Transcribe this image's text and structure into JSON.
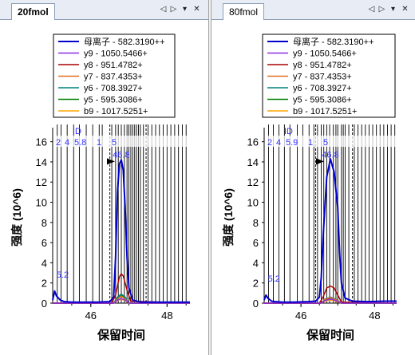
{
  "panes": [
    {
      "tab_label": "20fmol",
      "active": true
    },
    {
      "tab_label": "80fmol",
      "active": false
    }
  ],
  "controls": {
    "prev": "◁",
    "next": "▷",
    "menu": "▾",
    "close": "✕"
  },
  "chart_data": [
    {
      "type": "line",
      "title": "",
      "xlabel": "保留时间",
      "ylabel": "强度 (10^6)",
      "xlim": [
        45.0,
        48.6
      ],
      "ylim": [
        0,
        17
      ],
      "xticks": [
        46,
        48
      ],
      "yticks": [
        0,
        2,
        4,
        6,
        8,
        10,
        12,
        14,
        16
      ],
      "legend_position": "top",
      "peak_labels": [
        {
          "text": "46.8",
          "x": 46.8,
          "y": 14.2
        },
        {
          "text": "5.2",
          "x": 45.1,
          "y": 2.3
        }
      ],
      "id_header": "ID",
      "id_numbers": [
        "2",
        "4",
        "5.8",
        "1",
        "5"
      ],
      "series": [
        {
          "name": "母离子 - 582.3190++",
          "color": "#0000cc",
          "x": [
            45.0,
            45.05,
            45.1,
            45.2,
            45.3,
            45.5,
            45.8,
            46.2,
            46.5,
            46.6,
            46.65,
            46.7,
            46.75,
            46.8,
            46.85,
            46.9,
            46.95,
            47.0,
            47.1,
            47.3,
            47.8,
            48.3,
            48.6
          ],
          "y": [
            0.3,
            1.2,
            0.7,
            0.3,
            0.15,
            0.1,
            0.1,
            0.1,
            0.15,
            0.6,
            4.5,
            11.0,
            13.8,
            14.2,
            13.2,
            9.5,
            4.5,
            1.5,
            0.3,
            0.1,
            0.1,
            0.1,
            0.1
          ]
        },
        {
          "name": "y9 - 1050.5466+",
          "color": "#8a2be2",
          "x": [
            45.0,
            46.6,
            46.7,
            46.8,
            46.9,
            47.0,
            48.6
          ],
          "y": [
            0,
            0,
            0.3,
            0.45,
            0.3,
            0,
            0
          ]
        },
        {
          "name": "y8 - 951.4782+",
          "color": "#aa0000",
          "x": [
            45.0,
            46.55,
            46.65,
            46.75,
            46.8,
            46.85,
            46.95,
            47.05,
            48.6
          ],
          "y": [
            0,
            0,
            0.8,
            2.6,
            2.9,
            2.7,
            1.3,
            0.2,
            0
          ]
        },
        {
          "name": "y7 - 837.4353+",
          "color": "#e07020",
          "x": [
            45.0,
            46.6,
            46.7,
            46.8,
            46.9,
            47.0,
            48.6
          ],
          "y": [
            0,
            0,
            0.4,
            0.7,
            0.4,
            0,
            0
          ]
        },
        {
          "name": "y6 - 708.3927+",
          "color": "#008080",
          "x": [
            45.0,
            46.6,
            46.7,
            46.8,
            46.9,
            47.0,
            48.6
          ],
          "y": [
            0,
            0,
            0.6,
            0.9,
            0.6,
            0,
            0
          ]
        },
        {
          "name": "y5 - 595.3086+",
          "color": "#008000",
          "x": [
            45.0,
            46.6,
            46.7,
            46.8,
            46.9,
            47.0,
            48.6
          ],
          "y": [
            0,
            0,
            0.5,
            0.8,
            0.5,
            0,
            0
          ]
        },
        {
          "name": "b9 - 1017.5251+",
          "color": "#ffa500",
          "x": [
            45.0,
            46.6,
            46.7,
            46.8,
            46.9,
            47.0,
            48.6
          ],
          "y": [
            0,
            0,
            0.25,
            0.4,
            0.25,
            0,
            0
          ]
        }
      ]
    },
    {
      "type": "line",
      "title": "",
      "xlabel": "保留时间",
      "ylabel": "强度 (10^6)",
      "xlim": [
        45.0,
        48.6
      ],
      "ylim": [
        0,
        17
      ],
      "xticks": [
        46,
        48
      ],
      "yticks": [
        0,
        2,
        4,
        6,
        8,
        10,
        12,
        14,
        16
      ],
      "legend_position": "top",
      "peak_labels": [
        {
          "text": "46.8",
          "x": 46.8,
          "y": 14.2
        },
        {
          "text": "5.2",
          "x": 45.1,
          "y": 1.9
        }
      ],
      "id_header": "ID",
      "id_numbers": [
        "2",
        "4",
        "5.9",
        "1",
        "5"
      ],
      "series": [
        {
          "name": "母离子 - 582.3190++",
          "color": "#0000cc",
          "x": [
            45.0,
            45.05,
            45.1,
            45.2,
            45.3,
            45.5,
            45.8,
            46.2,
            46.4,
            46.5,
            46.55,
            46.6,
            46.7,
            46.8,
            46.9,
            47.0,
            47.05,
            47.1,
            47.2,
            47.4,
            47.8,
            48.3,
            48.6
          ],
          "y": [
            0.3,
            0.8,
            0.5,
            0.2,
            0.15,
            0.1,
            0.1,
            0.15,
            0.2,
            0.6,
            2.5,
            6.5,
            12.5,
            14.3,
            13.0,
            9.5,
            5.0,
            2.0,
            0.5,
            0.2,
            0.15,
            0.2,
            0.2
          ]
        },
        {
          "name": "y9 - 1050.5466+",
          "color": "#8a2be2",
          "x": [
            45.0,
            46.55,
            46.65,
            46.8,
            46.95,
            47.1,
            48.6
          ],
          "y": [
            0,
            0,
            0.25,
            0.4,
            0.25,
            0,
            0
          ]
        },
        {
          "name": "y8 - 951.4782+",
          "color": "#aa0000",
          "x": [
            45.0,
            46.5,
            46.6,
            46.7,
            46.8,
            46.9,
            47.0,
            47.1,
            48.6
          ],
          "y": [
            0,
            0,
            0.6,
            1.5,
            1.7,
            1.5,
            0.8,
            0.1,
            0
          ]
        },
        {
          "name": "y7 - 837.4353+",
          "color": "#e07020",
          "x": [
            45.0,
            46.55,
            46.65,
            46.8,
            46.95,
            47.1,
            48.6
          ],
          "y": [
            0,
            0,
            0.35,
            0.55,
            0.35,
            0,
            0
          ]
        },
        {
          "name": "y6 - 708.3927+",
          "color": "#008080",
          "x": [
            45.0,
            46.55,
            46.65,
            46.8,
            46.95,
            47.1,
            48.6
          ],
          "y": [
            0,
            0,
            0.4,
            0.6,
            0.4,
            0,
            0
          ]
        },
        {
          "name": "y5 - 595.3086+",
          "color": "#008000",
          "x": [
            45.0,
            46.55,
            46.65,
            46.8,
            46.95,
            47.1,
            48.6
          ],
          "y": [
            0,
            0,
            0.3,
            0.45,
            0.3,
            0,
            0
          ]
        },
        {
          "name": "b9 - 1017.5251+",
          "color": "#ffa500",
          "x": [
            45.0,
            46.55,
            46.65,
            46.8,
            46.95,
            47.1,
            48.6
          ],
          "y": [
            0,
            0,
            0.2,
            0.3,
            0.2,
            0,
            0
          ]
        }
      ]
    }
  ]
}
